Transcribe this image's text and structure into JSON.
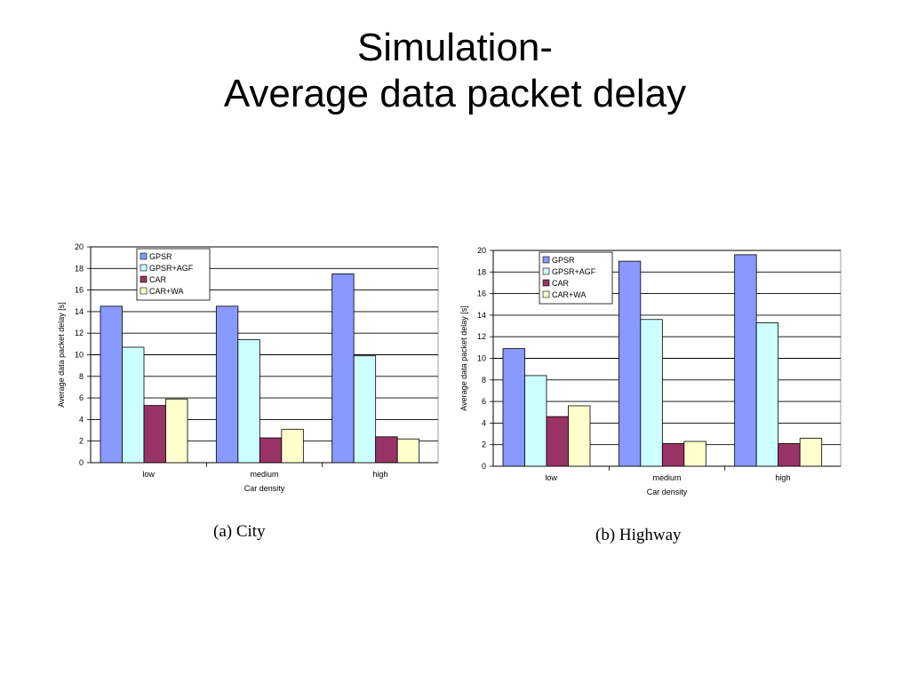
{
  "slide": {
    "title_line1": "Simulation-",
    "title_line2": "Average data packet delay"
  },
  "chart_data": [
    {
      "type": "bar",
      "caption": "(a) City",
      "categories": [
        "low",
        "medium",
        "high"
      ],
      "xlabel": "Car density",
      "ylabel": "Average data packet delay [s]",
      "ylim": [
        0,
        20
      ],
      "yticks": [
        0,
        2,
        4,
        6,
        8,
        10,
        12,
        14,
        16,
        18,
        20
      ],
      "grid": true,
      "legend": "top-left",
      "series": [
        {
          "name": "GPSR",
          "color": "#8899ff",
          "values": [
            14.5,
            14.5,
            17.5
          ]
        },
        {
          "name": "GPSR+AGF",
          "color": "#ccffff",
          "values": [
            10.7,
            11.4,
            9.9
          ]
        },
        {
          "name": "CAR",
          "color": "#993366",
          "values": [
            5.3,
            2.3,
            2.4
          ]
        },
        {
          "name": "CAR+WA",
          "color": "#ffffcc",
          "values": [
            5.9,
            3.1,
            2.2
          ]
        }
      ]
    },
    {
      "type": "bar",
      "caption": "(b) Highway",
      "categories": [
        "low",
        "medium",
        "high"
      ],
      "xlabel": "Car density",
      "ylabel": "Average data packet delay [s]",
      "ylim": [
        0,
        20
      ],
      "yticks": [
        0,
        2,
        4,
        6,
        8,
        10,
        12,
        14,
        16,
        18,
        20
      ],
      "grid": true,
      "legend": "top-left",
      "series": [
        {
          "name": "GPSR",
          "color": "#8899ff",
          "values": [
            10.9,
            19.0,
            19.6
          ]
        },
        {
          "name": "GPSR+AGF",
          "color": "#ccffff",
          "values": [
            8.4,
            13.6,
            13.3
          ]
        },
        {
          "name": "CAR",
          "color": "#993366",
          "values": [
            4.6,
            2.1,
            2.1
          ]
        },
        {
          "name": "CAR+WA",
          "color": "#ffffcc",
          "values": [
            5.6,
            2.3,
            2.6
          ]
        }
      ]
    }
  ]
}
